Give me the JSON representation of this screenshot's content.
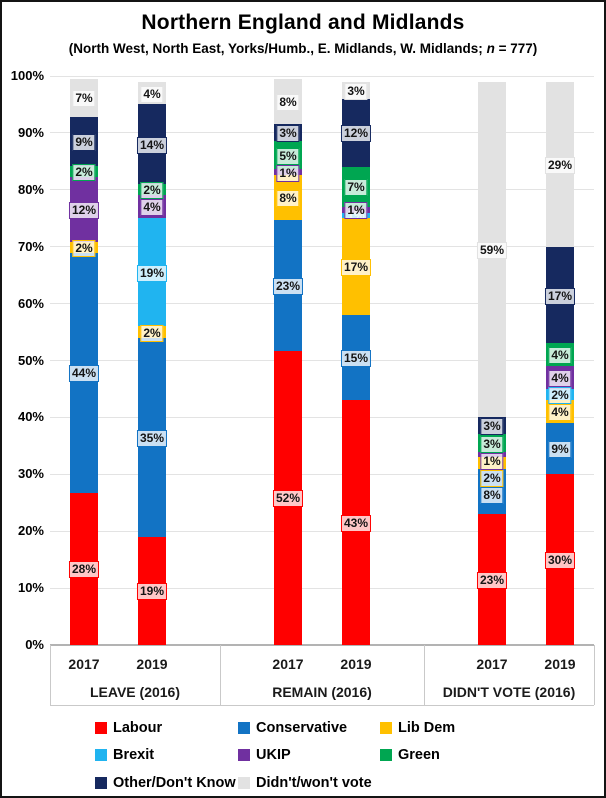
{
  "title": "Northern England and Midlands",
  "subtitle_prefix": "(North West, North East, Yorks/Humb., E. Midlands, W. Midlands; ",
  "subtitle_n": "n",
  "subtitle_suffix": " = 777)",
  "chart_data": {
    "type": "bar",
    "stacked": true,
    "value_unit": "%",
    "grid": "horizontal",
    "legend_position": "bottom",
    "ylim": [
      0,
      100
    ],
    "yticks": [
      {
        "value": 0,
        "label": "0%"
      },
      {
        "value": 10,
        "label": "10%"
      },
      {
        "value": 20,
        "label": "20%"
      },
      {
        "value": 30,
        "label": "30%"
      },
      {
        "value": 40,
        "label": "40%"
      },
      {
        "value": 50,
        "label": "50%"
      },
      {
        "value": 60,
        "label": "60%"
      },
      {
        "value": 70,
        "label": "70%"
      },
      {
        "value": 80,
        "label": "80%"
      },
      {
        "value": 90,
        "label": "90%"
      },
      {
        "value": 100,
        "label": "100%"
      }
    ],
    "series": [
      {
        "name": "Labour",
        "color": "#FF0000"
      },
      {
        "name": "Conservative",
        "color": "#1273C4"
      },
      {
        "name": "Lib Dem",
        "color": "#FFC000"
      },
      {
        "name": "Brexit",
        "color": "#20B4F0"
      },
      {
        "name": "UKIP",
        "color": "#7030A0"
      },
      {
        "name": "Green",
        "color": "#00A651"
      },
      {
        "name": "Other/Don't Know",
        "color": "#16295F"
      },
      {
        "name": "Didn't/won't vote",
        "color": "#E2E2E2"
      }
    ],
    "groups": [
      {
        "label": "LEAVE (2016)",
        "bars": [
          {
            "year": "2017",
            "values": {
              "Labour": 28,
              "Conservative": 44,
              "Lib Dem": 2,
              "UKIP": 12,
              "Green": 2,
              "Other/Don't Know": 9,
              "Didn't/won't vote": 7
            }
          },
          {
            "year": "2019",
            "values": {
              "Labour": 19,
              "Conservative": 35,
              "Lib Dem": 2,
              "Brexit": 19,
              "UKIP": 4,
              "Green": 2,
              "Other/Don't Know": 14,
              "Didn't/won't vote": 4
            }
          }
        ]
      },
      {
        "label": "REMAIN (2016)",
        "bars": [
          {
            "year": "2017",
            "values": {
              "Labour": 52,
              "Conservative": 23,
              "Lib Dem": 8,
              "UKIP": 1,
              "Green": 5,
              "Other/Don't Know": 3,
              "Didn't/won't vote": 8
            }
          },
          {
            "year": "2019",
            "values": {
              "Labour": 43,
              "Conservative": 15,
              "Lib Dem": 17,
              "Brexit": 1,
              "UKIP": 1,
              "Green": 7,
              "Other/Don't Know": 12,
              "Didn't/won't vote": 3
            },
            "muted_labels": [
              "Brexit"
            ]
          }
        ]
      },
      {
        "label": "DIDN'T VOTE (2016)",
        "bars": [
          {
            "year": "2017",
            "values": {
              "Labour": 23,
              "Conservative": 8,
              "Lib Dem": 2,
              "UKIP": 1,
              "Green": 3,
              "Other/Don't Know": 3,
              "Didn't/won't vote": 59
            }
          },
          {
            "year": "2019",
            "values": {
              "Labour": 30,
              "Conservative": 9,
              "Lib Dem": 4,
              "Brexit": 2,
              "UKIP": 4,
              "Green": 4,
              "Other/Don't Know": 17,
              "Didn't/won't vote": 29
            }
          }
        ]
      }
    ]
  }
}
